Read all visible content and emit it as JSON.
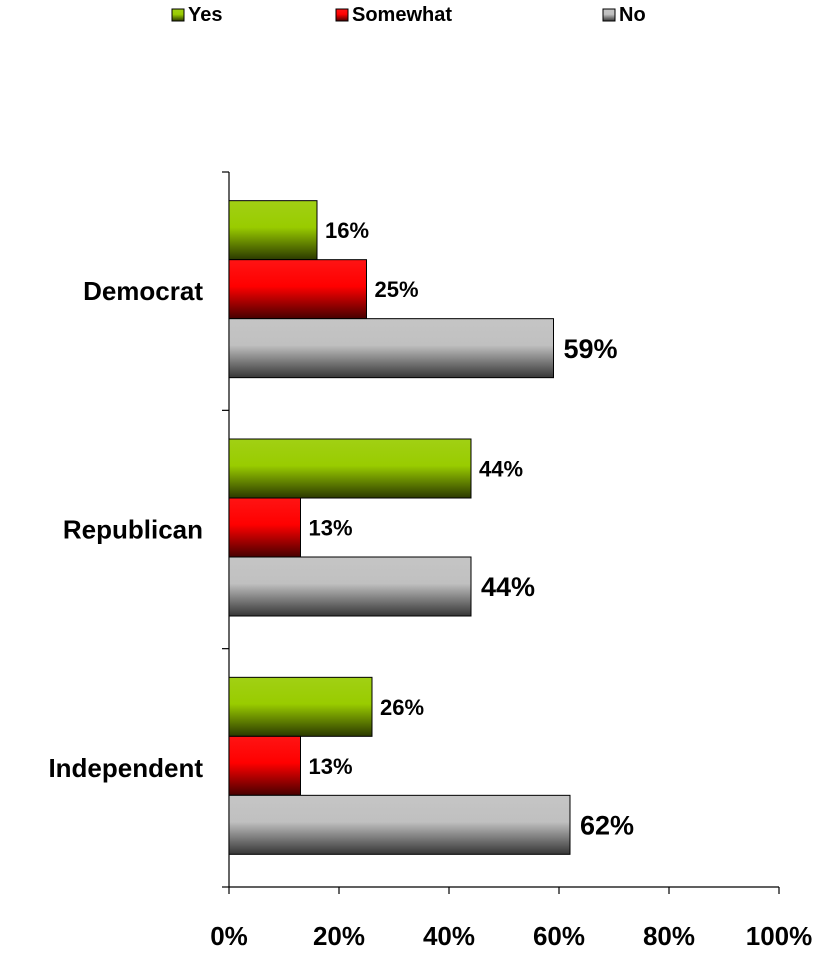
{
  "chart_data": {
    "type": "bar",
    "orientation": "horizontal",
    "title": "",
    "xlabel": "",
    "ylabel": "",
    "categories": [
      "Democrat",
      "Republican",
      "Independent"
    ],
    "series": [
      {
        "name": "Yes",
        "values": [
          16,
          44,
          26
        ],
        "color": "#99CC00",
        "labels": [
          "16%",
          "44%",
          "26%"
        ]
      },
      {
        "name": "Somewhat",
        "values": [
          25,
          13,
          13
        ],
        "color": "#FF0000",
        "labels": [
          "25%",
          "13%",
          "13%"
        ]
      },
      {
        "name": "No",
        "values": [
          59,
          44,
          62
        ],
        "color": "#C0C0C0",
        "labels": [
          "59%",
          "44%",
          "62%"
        ]
      }
    ],
    "xlim": [
      0,
      100
    ],
    "xticks": [
      0,
      20,
      40,
      60,
      80,
      100
    ],
    "xtick_labels": [
      "0%",
      "20%",
      "40%",
      "60%",
      "80%",
      "100%"
    ],
    "legend_position": "top",
    "grid": false
  }
}
